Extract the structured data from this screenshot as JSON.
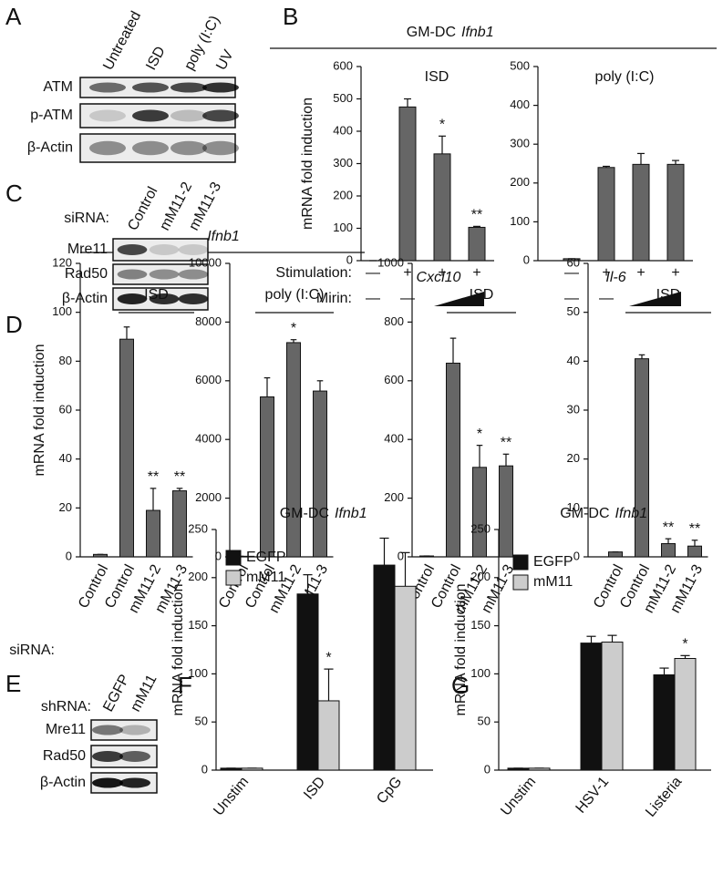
{
  "panel_labels": [
    "A",
    "B",
    "C",
    "D",
    "E",
    "F",
    "G"
  ],
  "header_b": {
    "prefix": "GM-DC",
    "gene": "Ifnb1"
  },
  "header_d": "Ifnb1",
  "stimulation_label": "Stimulation:",
  "mirin_label": "Mirin:",
  "mirin": [
    [
      "—",
      "—"
    ],
    [
      "—",
      "—"
    ]
  ],
  "sirna_label": "siRNA:",
  "blots": [
    {
      "lanes": [
        "Untreated",
        "ISD",
        "poly (I:C)",
        "UV"
      ],
      "rows": [
        "ATM",
        "p-ATM",
        "β-Actin"
      ]
    },
    {
      "label": "siRNA:",
      "lanes": [
        "Control",
        "mM11-2",
        "mM11-3"
      ],
      "rows": [
        "Mre11",
        "Rad50",
        "β-Actin"
      ]
    },
    {
      "label": "shRNA:",
      "lanes": [
        "EGFP",
        "mM11"
      ],
      "rows": [
        "Mre11",
        "Rad50",
        "β-Actin"
      ]
    }
  ],
  "chart_data": [
    {
      "type": "bar",
      "title": "ISD",
      "ylabel": "mRNA fold induction",
      "categories": [
        "—",
        "+",
        "+",
        "+"
      ],
      "values": [
        0,
        475,
        330,
        103
      ],
      "errors": [
        0,
        25,
        55,
        3
      ],
      "stars": [
        null,
        null,
        "*",
        "**"
      ],
      "color": "#666666",
      "ylim": [
        0,
        600
      ],
      "yticks": [
        0,
        100,
        200,
        300,
        400,
        500,
        600
      ]
    },
    {
      "type": "bar",
      "title": "poly (I:C)",
      "categories": [
        "—",
        "+",
        "+",
        "+"
      ],
      "values": [
        5,
        240,
        248,
        248
      ],
      "errors": [
        0,
        3,
        28,
        10
      ],
      "color": "#666666",
      "ylim": [
        0,
        500
      ],
      "yticks": [
        0,
        100,
        200,
        300,
        400,
        500
      ]
    },
    {
      "type": "bar",
      "bracket": "ISD",
      "ylabel": "mRNA fold induction",
      "categories": [
        "Control",
        "Control",
        "mM11-2",
        "mM11-3"
      ],
      "values": [
        1,
        89,
        19,
        27
      ],
      "errors": [
        0,
        5,
        9,
        1
      ],
      "stars": [
        null,
        null,
        "**",
        "**"
      ],
      "color": "#666666",
      "ylim": [
        0,
        120
      ],
      "yticks": [
        0,
        20,
        40,
        60,
        80,
        100,
        120
      ]
    },
    {
      "type": "bar",
      "bracket": "poly (I:C)",
      "categories": [
        "Control",
        "Control",
        "mM11-2",
        "mM11-3"
      ],
      "values": [
        20,
        5450,
        7300,
        5650
      ],
      "errors": [
        0,
        650,
        100,
        350
      ],
      "stars": [
        null,
        null,
        "*",
        null
      ],
      "color": "#666666",
      "ylim": [
        0,
        10000
      ],
      "yticks": [
        0,
        2000,
        4000,
        6000,
        8000,
        10000
      ]
    },
    {
      "type": "bar",
      "title": "Cxcl10",
      "bracket": "ISD",
      "categories": [
        "Control",
        "Control",
        "mM11-2",
        "mM11-3"
      ],
      "values": [
        3,
        660,
        305,
        310
      ],
      "errors": [
        0,
        85,
        75,
        40
      ],
      "stars": [
        null,
        null,
        "*",
        "**"
      ],
      "color": "#666666",
      "ylim": [
        0,
        1000
      ],
      "yticks": [
        0,
        200,
        400,
        600,
        800,
        1000
      ]
    },
    {
      "type": "bar",
      "title": "Il-6",
      "bracket": "ISD",
      "categories": [
        "Control",
        "Control",
        "mM11-2",
        "mM11-3"
      ],
      "values": [
        1,
        40.5,
        2.7,
        2.2
      ],
      "errors": [
        0,
        0.8,
        1,
        1.2
      ],
      "stars": [
        null,
        null,
        "**",
        "**"
      ],
      "color": "#666666",
      "ylim": [
        0,
        60
      ],
      "yticks": [
        0,
        10,
        20,
        30,
        40,
        50,
        60
      ]
    },
    {
      "type": "bar",
      "title_prefix": "GM-DC",
      "title_gene": "Ifnb1",
      "ylabel": "mRNA fold induction",
      "categories": [
        "Unstim",
        "ISD",
        "CpG"
      ],
      "series": [
        {
          "name": "EGFP",
          "color": "#111111",
          "values": [
            2,
            183,
            213
          ],
          "errors": [
            0,
            20,
            28
          ]
        },
        {
          "name": "mM11",
          "color": "#cccccc",
          "values": [
            2,
            72,
            191
          ],
          "errors": [
            0,
            33,
            35
          ],
          "stars": [
            null,
            "*",
            null
          ]
        }
      ],
      "ylim": [
        0,
        250
      ],
      "yticks": [
        0,
        50,
        100,
        150,
        200,
        250
      ]
    },
    {
      "type": "bar",
      "title_prefix": "GM-DC",
      "title_gene": "Ifnb1",
      "ylabel": "mRNA fold induction",
      "categories": [
        "Unstim",
        "HSV-1",
        "Listeria"
      ],
      "series": [
        {
          "name": "EGFP",
          "color": "#111111",
          "values": [
            2,
            132,
            99
          ],
          "errors": [
            0,
            7,
            7
          ]
        },
        {
          "name": "mM11",
          "color": "#cccccc",
          "values": [
            2,
            133,
            116
          ],
          "errors": [
            0,
            7,
            3
          ],
          "stars": [
            null,
            null,
            "*"
          ]
        }
      ],
      "ylim": [
        0,
        250
      ],
      "yticks": [
        0,
        50,
        100,
        150,
        200,
        250
      ]
    }
  ]
}
